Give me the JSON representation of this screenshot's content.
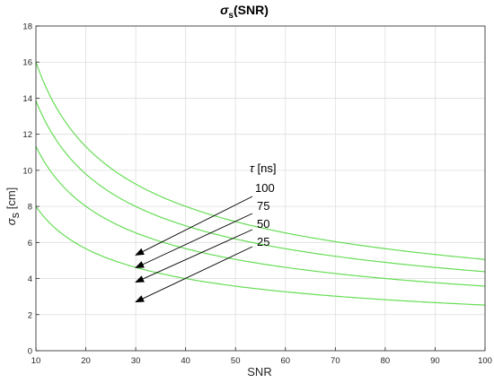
{
  "chart_data": {
    "type": "line",
    "title": {
      "symbol": "σ",
      "subscript": "s",
      "rest": "(SNR)"
    },
    "xlabel": "SNR",
    "ylabel": {
      "symbol": "σ",
      "subscript": "s",
      "rest": " [cm]"
    },
    "xlim": [
      10,
      100
    ],
    "ylim": [
      0,
      18
    ],
    "xticks": [
      10,
      20,
      30,
      40,
      50,
      60,
      70,
      80,
      90,
      100
    ],
    "yticks": [
      0,
      2,
      4,
      6,
      8,
      10,
      12,
      14,
      16,
      18
    ],
    "grid": true,
    "line_color": "#66dd55",
    "arrow_color": "#000000",
    "series": [
      {
        "tau": 100,
        "k": 50.6
      },
      {
        "tau": 75,
        "k": 43.8
      },
      {
        "tau": 50,
        "k": 35.8
      },
      {
        "tau": 25,
        "k": 25.3
      }
    ],
    "legend_title": {
      "symbol": "τ",
      "rest": " [ns]"
    },
    "annotations": [
      {
        "label": "100",
        "target_x": 30,
        "target_y": 5.3
      },
      {
        "label": "75",
        "target_x": 30,
        "target_y": 4.6
      },
      {
        "label": "50",
        "target_x": 30,
        "target_y": 3.8
      },
      {
        "label": "25",
        "target_x": 30,
        "target_y": 2.7
      }
    ]
  }
}
